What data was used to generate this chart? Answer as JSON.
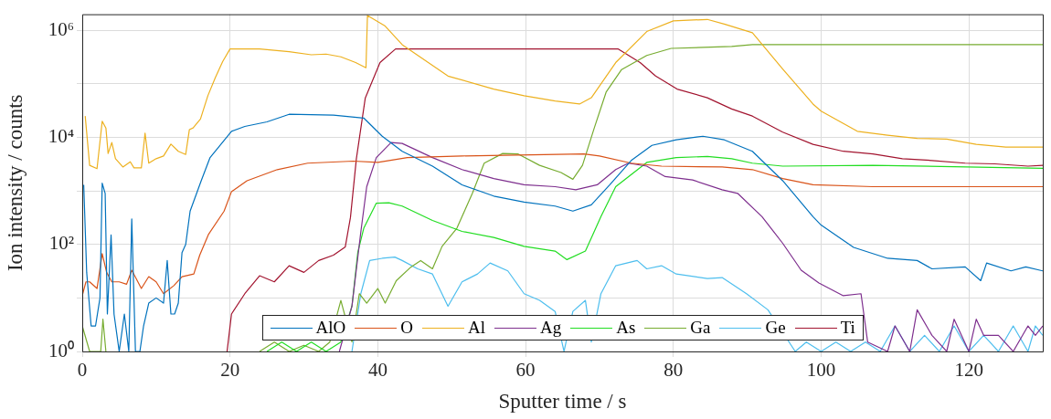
{
  "chart_data": {
    "type": "line",
    "xlabel": "Sputter time / s",
    "ylabel": "Ion intensity / counts",
    "log": "y",
    "grid": true,
    "legend": "bottom",
    "marker": "none",
    "line_style": "solid",
    "xlim": [
      0,
      130
    ],
    "xticks": [
      0,
      20,
      40,
      60,
      80,
      100,
      120
    ],
    "ylim": [
      1,
      2000000
    ],
    "yticks": [
      {
        "value": 1,
        "label": "10⁰"
      },
      {
        "value": 10,
        "label": null
      },
      {
        "value": 100,
        "label": "10²"
      },
      {
        "value": 1000,
        "label": null
      },
      {
        "value": 10000,
        "label": "10⁴"
      },
      {
        "value": 100000,
        "label": null
      },
      {
        "value": 1000000,
        "label": "10⁶"
      }
    ],
    "series": [
      {
        "name": "AlO",
        "color": "#0072bd",
        "x": [
          0.2,
          0.6,
          1.2,
          1.8,
          2.4,
          2.7,
          3.1,
          3.4,
          3.9,
          4.3,
          5,
          5.7,
          6.3,
          6.7,
          7.2,
          7.8,
          8.3,
          9,
          10,
          11,
          11.5,
          12,
          12.5,
          13,
          13.5,
          14,
          14.6,
          16.1,
          17.3,
          20.2,
          22,
          25,
          28,
          34,
          38.1,
          40.6,
          43.3,
          47.4,
          51.4,
          55.7,
          59.8,
          64,
          66.4,
          68.9,
          71.4,
          74.3,
          77.1,
          80.4,
          84,
          86.9,
          90.7,
          94.8,
          98.9,
          100,
          104.4,
          109,
          113,
          115,
          119.5,
          121.6,
          122.4,
          125.7,
          127.7,
          130
        ],
        "values": [
          1300,
          30,
          3,
          3,
          10,
          1400,
          900,
          5,
          150,
          5,
          1,
          5,
          1,
          300,
          1,
          1,
          3,
          8,
          10,
          8,
          50,
          5,
          5,
          8,
          70,
          100,
          420,
          1550,
          4200,
          13000,
          16000,
          19500,
          27000,
          26000,
          23000,
          10500,
          5500,
          2900,
          1300,
          800,
          620,
          520,
          420,
          550,
          1300,
          3700,
          7100,
          9000,
          10500,
          9000,
          5500,
          1550,
          330,
          230,
          88,
          55,
          50,
          35,
          38,
          21,
          45,
          32,
          38,
          32
        ]
      },
      {
        "name": "O",
        "color": "#d95319",
        "x": [
          0,
          0.5,
          1,
          2,
          2.7,
          3.3,
          4,
          5,
          6,
          6.7,
          8,
          9,
          10,
          11,
          12.4,
          13.5,
          15.1,
          15.9,
          17.1,
          19.2,
          20.2,
          22.3,
          26.4,
          30.5,
          36.7,
          40,
          44,
          51.4,
          67.9,
          70,
          74.3,
          78.4,
          86.6,
          90.7,
          94.8,
          98.9,
          107,
          130
        ],
        "values": [
          11,
          20,
          20,
          15,
          67,
          30,
          20,
          20,
          18,
          33,
          15,
          25,
          20,
          12,
          17,
          25,
          28,
          63,
          155,
          420,
          970,
          1550,
          2500,
          3300,
          3600,
          3400,
          4200,
          4500,
          4900,
          4500,
          3300,
          2900,
          2800,
          2500,
          1700,
          1300,
          1200,
          1200
        ]
      },
      {
        "name": "Al",
        "color": "#edb120",
        "x": [
          0.4,
          1,
          2,
          2.7,
          3.2,
          3.5,
          4,
          4.5,
          5.5,
          6.5,
          7,
          8,
          8.5,
          9,
          10,
          11,
          12,
          13,
          14,
          14.5,
          15,
          16,
          17,
          18,
          19,
          20,
          24,
          28,
          31,
          33,
          35,
          37,
          38.4,
          38.6,
          41,
          43.3,
          49.5,
          55.7,
          59.8,
          64,
          67.3,
          68.9,
          72.2,
          76.4,
          80,
          84.6,
          87,
          90.7,
          94.8,
          98.9,
          100,
          104.9,
          109,
          113,
          117,
          121,
          125,
          130
        ],
        "values": [
          25000,
          3000,
          2600,
          20000,
          15000,
          5000,
          8000,
          4000,
          2800,
          3500,
          2700,
          2700,
          12000,
          3300,
          4000,
          4500,
          7500,
          5500,
          4800,
          14000,
          15000,
          22000,
          60000,
          130000,
          260000,
          450000,
          450000,
          400000,
          350000,
          360000,
          320000,
          250000,
          200000,
          1900000,
          1200000,
          540000,
          140000,
          80000,
          60000,
          48000,
          42000,
          55000,
          250000,
          950000,
          1500000,
          1600000,
          1300000,
          900000,
          190000,
          42000,
          31000,
          13000,
          11000,
          9600,
          9300,
          7400,
          6600,
          6600
        ]
      },
      {
        "name": "Ag",
        "color": "#7e2f8e",
        "x": [
          34.8,
          36.5,
          37.7,
          38.5,
          39.8,
          41.8,
          43.3,
          47.4,
          51.4,
          55.7,
          59.8,
          64,
          66.8,
          69.7,
          72.2,
          73.9,
          76.4,
          78.9,
          82.6,
          86.6,
          88.7,
          92,
          94.8,
          97.3,
          99.7,
          103,
          105.4,
          106.3,
          109,
          110,
          112,
          113,
          115,
          117,
          118,
          120,
          121,
          122,
          124,
          126,
          128,
          129,
          130
        ],
        "values": [
          1,
          7,
          170,
          1200,
          4200,
          8000,
          7700,
          4200,
          2500,
          1700,
          1300,
          1200,
          1050,
          1300,
          2500,
          3300,
          2900,
          1850,
          1600,
          1050,
          900,
          330,
          105,
          33,
          19,
          11,
          12,
          1.5,
          1,
          3,
          1,
          6,
          2,
          1,
          4,
          1,
          4,
          2,
          2,
          1,
          3,
          2,
          3
        ]
      },
      {
        "name": "As",
        "color": "#22dd22",
        "x": [
          25,
          27,
          29,
          31,
          33,
          35,
          36.5,
          37.3,
          38.1,
          39.8,
          41.5,
          43.3,
          47.4,
          51.4,
          55.7,
          59.8,
          64,
          65.6,
          68.1,
          70.2,
          72.2,
          76.4,
          80.4,
          84.6,
          87.9,
          90.7,
          94.8,
          107,
          130
        ],
        "values": [
          1,
          1.5,
          1,
          1.5,
          1,
          1.5,
          7,
          72,
          200,
          590,
          600,
          520,
          280,
          175,
          135,
          92,
          75,
          52,
          75,
          330,
          1200,
          3400,
          4200,
          4400,
          4000,
          3300,
          2900,
          3000,
          2650
        ]
      },
      {
        "name": "Ga",
        "color": "#77ac30",
        "x": [
          0,
          1,
          2.5,
          2.8,
          3.2,
          10,
          24,
          26,
          28,
          30,
          32,
          33.5,
          35,
          36.5,
          37.5,
          38.5,
          40,
          41,
          42.5,
          44.5,
          45.8,
          47.4,
          48.7,
          50.7,
          52.8,
          54.4,
          56.9,
          59,
          61.9,
          64.8,
          66.4,
          67.7,
          69.3,
          70.9,
          73,
          76.4,
          79.7,
          87.9,
          90.7,
          130
        ],
        "values": [
          3,
          1,
          1,
          4,
          1,
          null,
          1,
          1.5,
          1,
          1.3,
          1,
          1.5,
          9,
          1.5,
          12,
          8,
          15,
          8,
          21,
          38,
          50,
          35,
          92,
          200,
          900,
          3300,
          5000,
          4900,
          3000,
          2200,
          1650,
          3000,
          15000,
          70000,
          185000,
          340000,
          460000,
          500000,
          540000,
          540000
        ]
      },
      {
        "name": "Ge",
        "color": "#4dbeee",
        "x": [
          36.5,
          37.7,
          38.9,
          40.6,
          42.3,
          43.3,
          45.4,
          47.4,
          49.5,
          51.4,
          53.5,
          55.2,
          57.6,
          59.8,
          61.9,
          64,
          65.2,
          66.4,
          68.1,
          68.9,
          70.2,
          72.2,
          75.1,
          76.4,
          78.4,
          80.4,
          84.6,
          86.6,
          89.9,
          92.8,
          96.5,
          98,
          100,
          102,
          104,
          106,
          108,
          110,
          112,
          114,
          116,
          118,
          120,
          122,
          124,
          126,
          128,
          129,
          130
        ],
        "values": [
          1,
          12,
          50,
          55,
          58,
          50,
          35,
          28,
          7,
          20,
          28,
          45,
          32,
          12,
          9,
          5.6,
          1,
          5.6,
          9,
          1.5,
          12,
          40,
          50,
          35,
          40,
          28,
          23,
          24,
          12,
          6,
          1,
          1.5,
          1,
          1.5,
          1,
          1.5,
          1,
          3,
          1,
          2,
          1,
          3,
          1,
          2,
          1,
          3,
          1,
          3,
          2
        ]
      },
      {
        "name": "Ti",
        "color": "#a2142f",
        "x": [
          19.6,
          20.2,
          22,
          24,
          26,
          28,
          30,
          32,
          34,
          35.6,
          36.3,
          37.1,
          38.3,
          40.3,
          42.4,
          72.5,
          75.5,
          77.6,
          80.5,
          84.6,
          87.9,
          90.7,
          94.8,
          98.9,
          103,
          107,
          111,
          115,
          119.5,
          123.5,
          128,
          130
        ],
        "values": [
          1,
          5,
          12,
          26,
          20,
          40,
          30,
          50,
          63,
          90,
          320,
          4000,
          54000,
          250000,
          450000,
          450000,
          250000,
          140000,
          80000,
          55000,
          34000,
          25000,
          12500,
          7400,
          5500,
          4900,
          4000,
          3700,
          3300,
          3200,
          2900,
          3000
        ]
      }
    ]
  }
}
